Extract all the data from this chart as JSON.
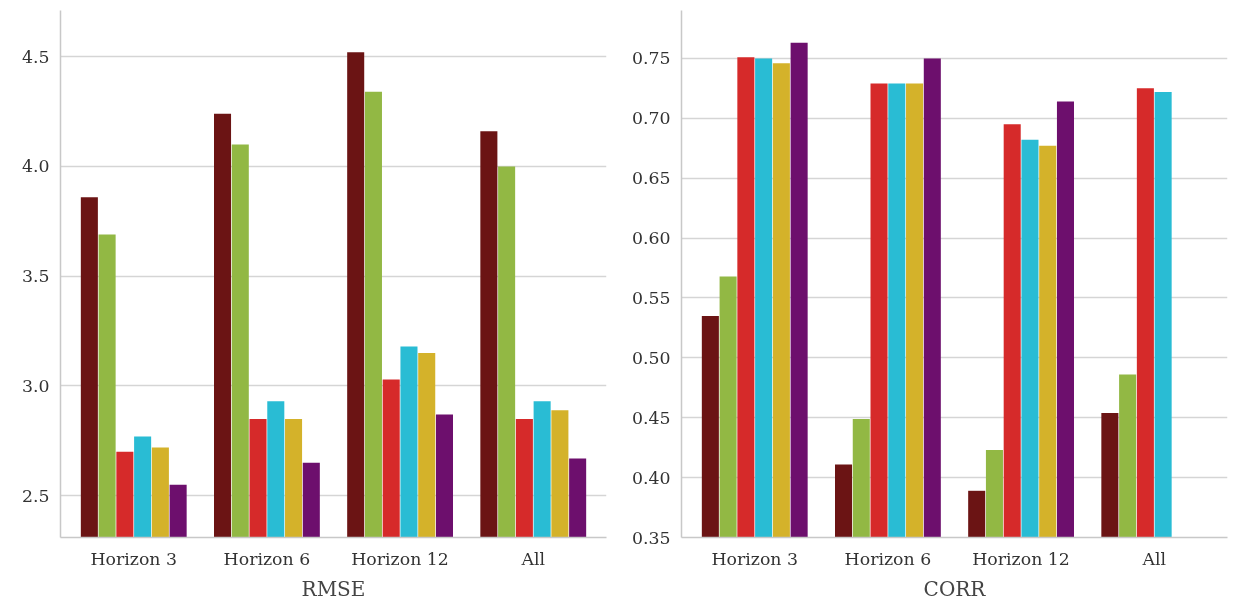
{
  "chart_data": [
    {
      "type": "bar",
      "xlabel": "RMSE",
      "categories": [
        "Horizon 3",
        "Horizon 6",
        "Horizon 12",
        "All"
      ],
      "ylim": [
        2.31,
        4.71
      ],
      "yticks": [
        {
          "value": 2.5,
          "label": "2.5"
        },
        {
          "value": 3.0,
          "label": "3.0"
        },
        {
          "value": 3.5,
          "label": "3.5"
        },
        {
          "value": 4.0,
          "label": "4.0"
        },
        {
          "value": 4.5,
          "label": "4.5"
        }
      ],
      "grid": "y",
      "series": [
        {
          "color": "#6b1414",
          "values": [
            3.86,
            4.24,
            4.52,
            4.16
          ]
        },
        {
          "color": "#92b844",
          "values": [
            3.69,
            4.1,
            4.34,
            4.0
          ]
        },
        {
          "color": "#d62a2a",
          "values": [
            2.7,
            2.85,
            3.03,
            2.85
          ]
        },
        {
          "color": "#29bcd4",
          "values": [
            2.77,
            2.93,
            3.18,
            2.93
          ]
        },
        {
          "color": "#d4b22a",
          "values": [
            2.72,
            2.85,
            3.15,
            2.89
          ]
        },
        {
          "color": "#6d0f6d",
          "values": [
            2.55,
            2.65,
            2.87,
            2.67
          ]
        }
      ]
    },
    {
      "type": "bar",
      "xlabel": "CORR",
      "categories": [
        "Horizon 3",
        "Horizon 6",
        "Horizon 12",
        "All"
      ],
      "ylim": [
        0.35,
        0.79
      ],
      "yticks": [
        0.35,
        {
          "value": 0.4,
          "label": "0.40"
        },
        0.45,
        {
          "value": 0.5,
          "label": "0.50"
        },
        0.55,
        {
          "value": 0.6,
          "label": "0.60"
        },
        0.65,
        {
          "value": 0.7,
          "label": "0.70"
        },
        0.75
      ],
      "grid": "y",
      "series": [
        {
          "color": "#6b1414",
          "values": [
            0.535,
            0.411,
            0.389,
            0.454
          ]
        },
        {
          "color": "#92b844",
          "values": [
            0.568,
            0.449,
            0.423,
            0.486
          ]
        },
        {
          "color": "#d62a2a",
          "values": [
            0.751,
            0.729,
            0.695,
            0.725
          ]
        },
        {
          "color": "#29bcd4",
          "values": [
            0.75,
            0.729,
            0.682,
            0.722
          ]
        },
        {
          "color": "#d4b22a",
          "values": [
            0.746,
            0.729,
            0.677,
            null
          ]
        },
        {
          "color": "#6d0f6d",
          "values": [
            0.763,
            0.75,
            0.714,
            null
          ]
        }
      ]
    }
  ]
}
